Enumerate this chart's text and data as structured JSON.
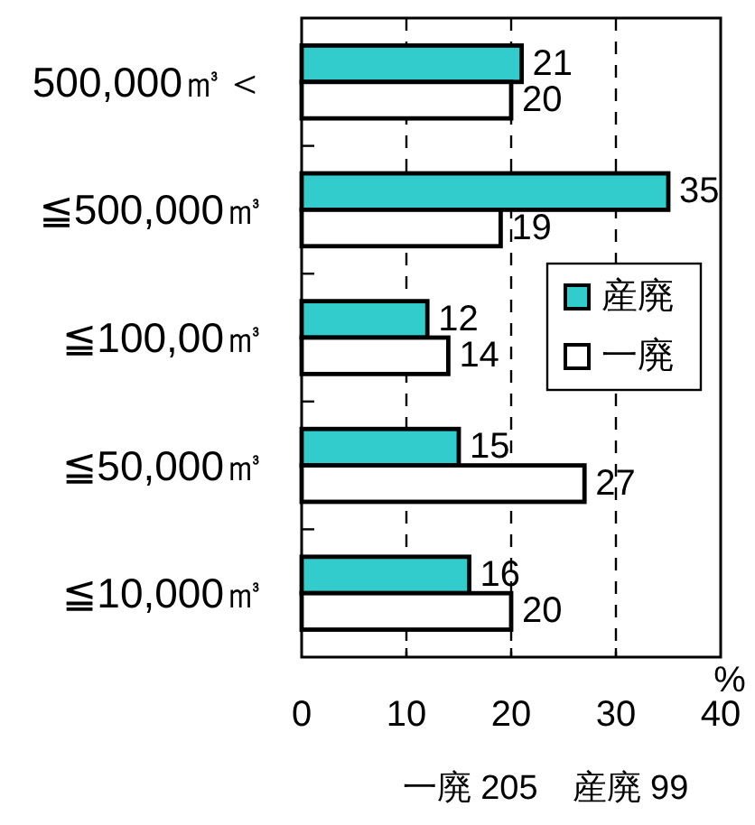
{
  "chart_data": {
    "type": "bar",
    "orientation": "horizontal",
    "categories": [
      "500,000㎥＜",
      "≦500,000㎥",
      "≦100,00㎥",
      "≦50,000㎥",
      "≦10,000㎥"
    ],
    "series": [
      {
        "name": "産廃",
        "color": "#33cccc",
        "values": [
          21,
          35,
          12,
          15,
          16
        ]
      },
      {
        "name": "一廃",
        "color": "#ffffff",
        "values": [
          20,
          19,
          14,
          27,
          20
        ]
      }
    ],
    "xlim": [
      0,
      40
    ],
    "xticks": [
      0,
      10,
      20,
      30,
      40
    ],
    "xlabel": "%",
    "grid": "x",
    "legend": "right",
    "data_labels": true,
    "annotations": [
      "一廃 205　産廃 99"
    ]
  }
}
